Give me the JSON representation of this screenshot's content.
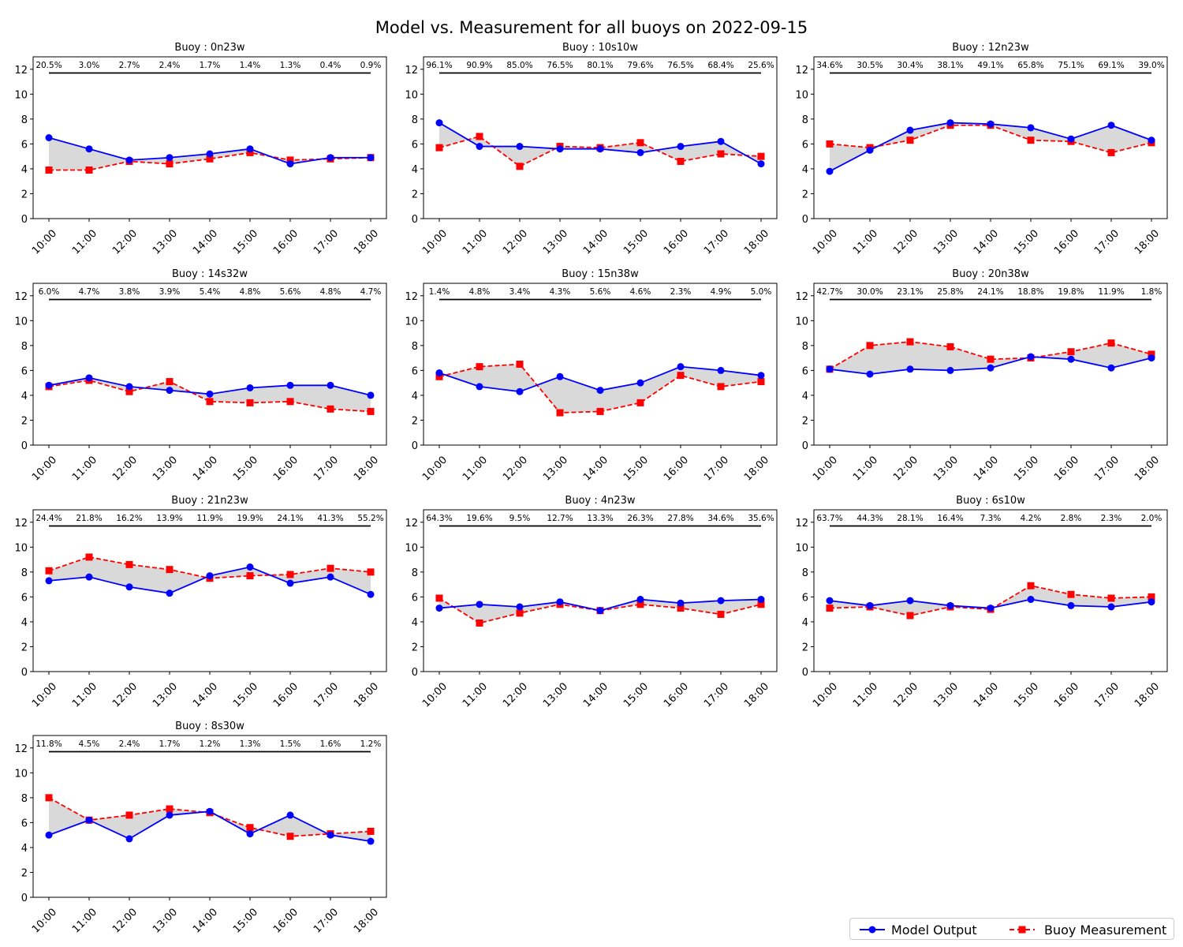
{
  "chart_data": {
    "type": "line",
    "title": "Model vs. Measurement for all buoys on 2022-09-15",
    "categories": [
      "10:00",
      "11:00",
      "12:00",
      "13:00",
      "14:00",
      "15:00",
      "16:00",
      "17:00",
      "18:00"
    ],
    "ylim": [
      0,
      13
    ],
    "yticks": [
      0,
      2,
      4,
      6,
      8,
      10,
      12
    ],
    "grid": false,
    "legend_position": "bottom-right",
    "colors": {
      "model": "#0000ff",
      "measurement": "#ff0000",
      "fill": "#d9d9d9",
      "bar": "#000000"
    },
    "legend": {
      "model": "Model Output",
      "measurement": "Buoy Measurement"
    },
    "panels": [
      {
        "title": "Buoy : 0n23w",
        "model": [
          6.5,
          5.6,
          4.7,
          4.9,
          5.2,
          5.6,
          4.4,
          4.9,
          4.9
        ],
        "measurement": [
          3.9,
          3.9,
          4.6,
          4.4,
          4.8,
          5.3,
          4.7,
          4.8,
          4.9
        ],
        "percentages": [
          "20.5%",
          "3.0%",
          "2.7%",
          "2.4%",
          "1.7%",
          "1.4%",
          "1.3%",
          "0.4%",
          "0.9%"
        ]
      },
      {
        "title": "Buoy : 10s10w",
        "model": [
          7.7,
          5.8,
          5.8,
          5.6,
          5.6,
          5.3,
          5.8,
          6.2,
          4.4
        ],
        "measurement": [
          5.7,
          6.6,
          4.2,
          5.8,
          5.7,
          6.1,
          4.6,
          5.2,
          5.0
        ],
        "percentages": [
          "96.1%",
          "90.9%",
          "85.0%",
          "76.5%",
          "80.1%",
          "79.6%",
          "76.5%",
          "68.4%",
          "25.6%"
        ]
      },
      {
        "title": "Buoy : 12n23w",
        "model": [
          3.8,
          5.5,
          7.1,
          7.7,
          7.6,
          7.3,
          6.4,
          7.5,
          6.3
        ],
        "measurement": [
          6.0,
          5.7,
          6.3,
          7.5,
          7.5,
          6.3,
          6.2,
          5.3,
          6.1
        ],
        "percentages": [
          "34.6%",
          "30.5%",
          "30.4%",
          "38.1%",
          "49.1%",
          "65.8%",
          "75.1%",
          "69.1%",
          "39.0%"
        ]
      },
      {
        "title": "Buoy : 14s32w",
        "model": [
          4.8,
          5.4,
          4.7,
          4.4,
          4.1,
          4.6,
          4.8,
          4.8,
          4.0
        ],
        "measurement": [
          4.7,
          5.2,
          4.3,
          5.1,
          3.5,
          3.4,
          3.5,
          2.9,
          2.7
        ],
        "percentages": [
          "6.0%",
          "4.7%",
          "3.8%",
          "3.9%",
          "5.4%",
          "4.8%",
          "5.6%",
          "4.8%",
          "4.7%"
        ]
      },
      {
        "title": "Buoy : 15n38w",
        "model": [
          5.8,
          4.7,
          4.3,
          5.5,
          4.4,
          5.0,
          6.3,
          6.0,
          5.6
        ],
        "measurement": [
          5.5,
          6.3,
          6.5,
          2.6,
          2.7,
          3.4,
          5.6,
          4.7,
          5.1
        ],
        "percentages": [
          "1.4%",
          "4.8%",
          "3.4%",
          "4.3%",
          "5.6%",
          "4.6%",
          "2.3%",
          "4.9%",
          "5.0%"
        ]
      },
      {
        "title": "Buoy : 20n38w",
        "model": [
          6.1,
          5.7,
          6.1,
          6.0,
          6.2,
          7.1,
          6.9,
          6.2,
          7.0
        ],
        "measurement": [
          6.1,
          8.0,
          8.3,
          7.9,
          6.9,
          7.0,
          7.5,
          8.2,
          7.3
        ],
        "percentages": [
          "42.7%",
          "30.0%",
          "23.1%",
          "25.8%",
          "24.1%",
          "18.8%",
          "19.8%",
          "11.9%",
          "1.8%"
        ]
      },
      {
        "title": "Buoy : 21n23w",
        "model": [
          7.3,
          7.6,
          6.8,
          6.3,
          7.7,
          8.4,
          7.1,
          7.6,
          6.2
        ],
        "measurement": [
          8.1,
          9.2,
          8.6,
          8.2,
          7.5,
          7.7,
          7.8,
          8.3,
          8.0
        ],
        "percentages": [
          "24.4%",
          "21.8%",
          "16.2%",
          "13.9%",
          "11.9%",
          "19.9%",
          "24.1%",
          "41.3%",
          "55.2%"
        ]
      },
      {
        "title": "Buoy : 4n23w",
        "model": [
          5.1,
          5.4,
          5.2,
          5.6,
          4.9,
          5.8,
          5.5,
          5.7,
          5.8
        ],
        "measurement": [
          5.9,
          3.9,
          4.7,
          5.4,
          4.9,
          5.4,
          5.1,
          4.6,
          5.4
        ],
        "percentages": [
          "64.3%",
          "19.6%",
          "9.5%",
          "12.7%",
          "13.3%",
          "26.3%",
          "27.8%",
          "34.6%",
          "35.6%"
        ]
      },
      {
        "title": "Buoy : 6s10w",
        "model": [
          5.7,
          5.3,
          5.7,
          5.3,
          5.1,
          5.8,
          5.3,
          5.2,
          5.6
        ],
        "measurement": [
          5.1,
          5.2,
          4.5,
          5.2,
          5.0,
          6.9,
          6.2,
          5.9,
          6.0
        ],
        "percentages": [
          "63.7%",
          "44.3%",
          "28.1%",
          "16.4%",
          "7.3%",
          "4.2%",
          "2.8%",
          "2.3%",
          "2.0%"
        ]
      },
      {
        "title": "Buoy : 8s30w",
        "model": [
          5.0,
          6.2,
          4.7,
          6.6,
          6.9,
          5.1,
          6.6,
          5.0,
          4.5
        ],
        "measurement": [
          8.0,
          6.2,
          6.6,
          7.1,
          6.8,
          5.6,
          4.9,
          5.1,
          5.3
        ],
        "percentages": [
          "11.8%",
          "4.5%",
          "2.4%",
          "1.7%",
          "1.2%",
          "1.3%",
          "1.5%",
          "1.6%",
          "1.2%"
        ]
      }
    ]
  }
}
